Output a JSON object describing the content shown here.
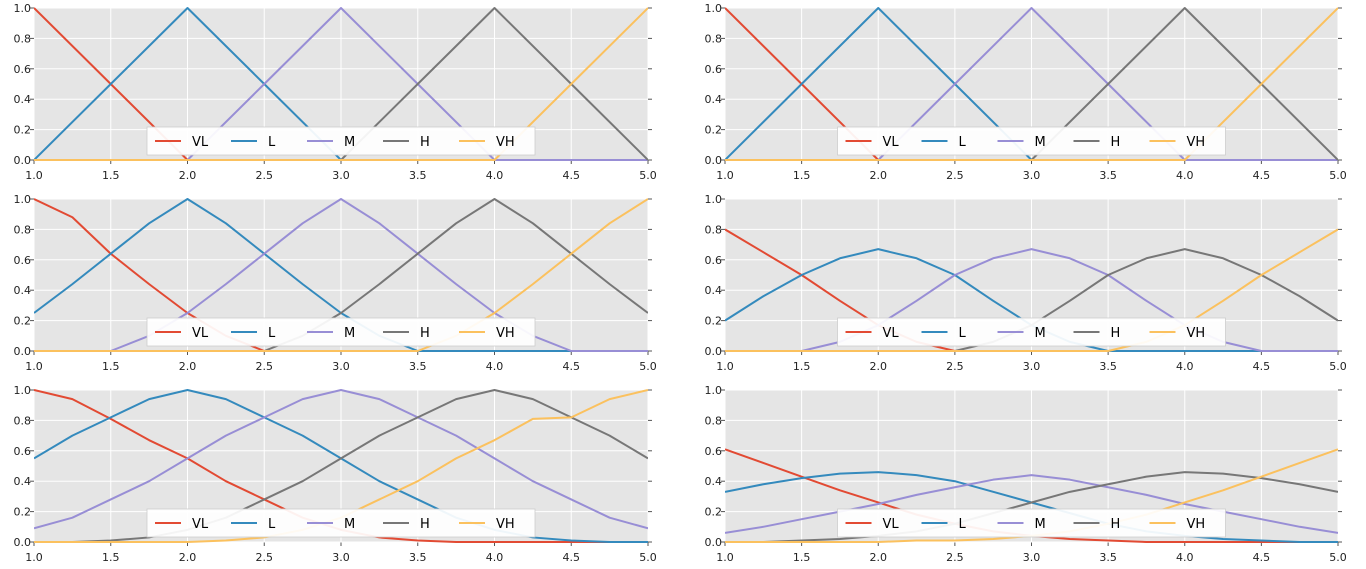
{
  "legend": {
    "labels": [
      "VL",
      "L",
      "M",
      "H",
      "VH"
    ],
    "colors": [
      "#E24A33",
      "#348ABD",
      "#988ED5",
      "#777777",
      "#FBC15E"
    ],
    "placement": "lower-center"
  },
  "style": {
    "plot_background": "#E5E5E5",
    "grid_color": "#FFFFFF",
    "grid": true
  },
  "chart_data": [
    {
      "type": "line",
      "x": [
        1.0,
        1.5,
        2.0,
        2.5,
        3.0,
        3.5,
        4.0,
        4.5,
        5.0
      ],
      "x_tick_labels": [
        "1.0",
        "1.5",
        "2.0",
        "2.5",
        "3.0",
        "3.5",
        "4.0",
        "4.5",
        "5.0"
      ],
      "y_tick_labels": [
        "0.0",
        "0.2",
        "0.4",
        "0.6",
        "0.8",
        "1.0"
      ],
      "xlim": [
        1.0,
        5.0
      ],
      "ylim": [
        0.0,
        1.0
      ],
      "series": [
        {
          "name": "VL",
          "values": [
            1.0,
            0.5,
            0.0,
            0.0,
            0.0,
            0.0,
            0.0,
            0.0,
            0.0
          ]
        },
        {
          "name": "L",
          "values": [
            0.0,
            0.5,
            1.0,
            0.5,
            0.0,
            0.0,
            0.0,
            0.0,
            0.0
          ]
        },
        {
          "name": "M",
          "values": [
            0.0,
            0.0,
            0.0,
            0.5,
            1.0,
            0.5,
            0.0,
            0.0,
            0.0
          ]
        },
        {
          "name": "H",
          "values": [
            0.0,
            0.0,
            0.0,
            0.0,
            0.0,
            0.5,
            1.0,
            0.5,
            0.0
          ]
        },
        {
          "name": "VH",
          "values": [
            0.0,
            0.0,
            0.0,
            0.0,
            0.0,
            0.0,
            0.0,
            0.5,
            1.0
          ]
        }
      ]
    },
    {
      "type": "line",
      "x": [
        1.0,
        1.5,
        2.0,
        2.5,
        3.0,
        3.5,
        4.0,
        4.5,
        5.0
      ],
      "x_tick_labels": [
        "1.0",
        "1.5",
        "2.0",
        "2.5",
        "3.0",
        "3.5",
        "4.0",
        "4.5",
        "5.0"
      ],
      "y_tick_labels": [
        "0.0",
        "0.2",
        "0.4",
        "0.6",
        "0.8",
        "1.0"
      ],
      "xlim": [
        1.0,
        5.0
      ],
      "ylim": [
        0.0,
        1.0
      ],
      "series": [
        {
          "name": "VL",
          "values": [
            1.0,
            0.5,
            0.0,
            0.0,
            0.0,
            0.0,
            0.0,
            0.0,
            0.0
          ]
        },
        {
          "name": "L",
          "values": [
            0.0,
            0.5,
            1.0,
            0.5,
            0.0,
            0.0,
            0.0,
            0.0,
            0.0
          ]
        },
        {
          "name": "M",
          "values": [
            0.0,
            0.0,
            0.0,
            0.5,
            1.0,
            0.5,
            0.0,
            0.0,
            0.0
          ]
        },
        {
          "name": "H",
          "values": [
            0.0,
            0.0,
            0.0,
            0.0,
            0.0,
            0.5,
            1.0,
            0.5,
            0.0
          ]
        },
        {
          "name": "VH",
          "values": [
            0.0,
            0.0,
            0.0,
            0.0,
            0.0,
            0.0,
            0.0,
            0.5,
            1.0
          ]
        }
      ]
    },
    {
      "type": "line",
      "x": [
        1.0,
        1.25,
        1.5,
        1.75,
        2.0,
        2.25,
        2.5,
        2.75,
        3.0,
        3.25,
        3.5,
        3.75,
        4.0,
        4.25,
        4.5,
        4.75,
        5.0
      ],
      "x_tick_labels": [
        "1.0",
        "1.5",
        "2.0",
        "2.5",
        "3.0",
        "3.5",
        "4.0",
        "4.5",
        "5.0"
      ],
      "y_tick_labels": [
        "0.0",
        "0.2",
        "0.4",
        "0.6",
        "0.8",
        "1.0"
      ],
      "xlim": [
        1.0,
        5.0
      ],
      "ylim": [
        0.0,
        1.0
      ],
      "series": [
        {
          "name": "VL",
          "values": [
            1.0,
            0.88,
            0.64,
            0.44,
            0.25,
            0.1,
            0.0,
            0.0,
            0.0,
            0.0,
            0.0,
            0.0,
            0.0,
            0.0,
            0.0,
            0.0,
            0.0
          ]
        },
        {
          "name": "L",
          "values": [
            0.25,
            0.44,
            0.64,
            0.84,
            1.0,
            0.84,
            0.64,
            0.44,
            0.25,
            0.1,
            0.0,
            0.0,
            0.0,
            0.0,
            0.0,
            0.0,
            0.0
          ]
        },
        {
          "name": "M",
          "values": [
            0.0,
            0.0,
            0.0,
            0.1,
            0.25,
            0.44,
            0.64,
            0.84,
            1.0,
            0.84,
            0.64,
            0.44,
            0.25,
            0.1,
            0.0,
            0.0,
            0.0
          ]
        },
        {
          "name": "H",
          "values": [
            0.0,
            0.0,
            0.0,
            0.0,
            0.0,
            0.0,
            0.0,
            0.1,
            0.25,
            0.44,
            0.64,
            0.84,
            1.0,
            0.84,
            0.64,
            0.44,
            0.25
          ]
        },
        {
          "name": "VH",
          "values": [
            0.0,
            0.0,
            0.0,
            0.0,
            0.0,
            0.0,
            0.0,
            0.0,
            0.0,
            0.0,
            0.0,
            0.1,
            0.25,
            0.44,
            0.64,
            0.84,
            1.0
          ]
        }
      ]
    },
    {
      "type": "line",
      "x": [
        1.0,
        1.25,
        1.5,
        1.75,
        2.0,
        2.25,
        2.5,
        2.75,
        3.0,
        3.25,
        3.5,
        3.75,
        4.0,
        4.25,
        4.5,
        4.75,
        5.0
      ],
      "x_tick_labels": [
        "1.0",
        "1.5",
        "2.0",
        "2.5",
        "3.0",
        "3.5",
        "4.0",
        "4.5",
        "5.0"
      ],
      "y_tick_labels": [
        "0.0",
        "0.2",
        "0.4",
        "0.6",
        "0.8",
        "1.0"
      ],
      "xlim": [
        1.0,
        5.0
      ],
      "ylim": [
        0.0,
        1.0
      ],
      "series": [
        {
          "name": "VL",
          "values": [
            0.8,
            0.65,
            0.5,
            0.33,
            0.17,
            0.06,
            0.0,
            0.0,
            0.0,
            0.0,
            0.0,
            0.0,
            0.0,
            0.0,
            0.0,
            0.0,
            0.0
          ]
        },
        {
          "name": "L",
          "values": [
            0.2,
            0.36,
            0.5,
            0.61,
            0.67,
            0.61,
            0.5,
            0.33,
            0.17,
            0.06,
            0.0,
            0.0,
            0.0,
            0.0,
            0.0,
            0.0,
            0.0
          ]
        },
        {
          "name": "M",
          "values": [
            0.0,
            0.0,
            0.0,
            0.06,
            0.17,
            0.33,
            0.5,
            0.61,
            0.67,
            0.61,
            0.5,
            0.33,
            0.17,
            0.06,
            0.0,
            0.0,
            0.0
          ]
        },
        {
          "name": "H",
          "values": [
            0.0,
            0.0,
            0.0,
            0.0,
            0.0,
            0.0,
            0.0,
            0.06,
            0.17,
            0.33,
            0.5,
            0.61,
            0.67,
            0.61,
            0.5,
            0.36,
            0.2
          ]
        },
        {
          "name": "VH",
          "values": [
            0.0,
            0.0,
            0.0,
            0.0,
            0.0,
            0.0,
            0.0,
            0.0,
            0.0,
            0.0,
            0.0,
            0.06,
            0.17,
            0.33,
            0.5,
            0.65,
            0.8
          ]
        }
      ]
    },
    {
      "type": "line",
      "x": [
        1.0,
        1.25,
        1.5,
        1.75,
        2.0,
        2.25,
        2.5,
        2.75,
        3.0,
        3.25,
        3.5,
        3.75,
        4.0,
        4.25,
        4.5,
        4.75,
        5.0
      ],
      "x_tick_labels": [
        "1.0",
        "1.5",
        "2.0",
        "2.5",
        "3.0",
        "3.5",
        "4.0",
        "4.5",
        "5.0"
      ],
      "y_tick_labels": [
        "0.0",
        "0.2",
        "0.4",
        "0.6",
        "0.8",
        "1.0"
      ],
      "xlim": [
        1.0,
        5.0
      ],
      "ylim": [
        0.0,
        1.0
      ],
      "series": [
        {
          "name": "VL",
          "values": [
            1.0,
            0.94,
            0.81,
            0.67,
            0.55,
            0.4,
            0.28,
            0.16,
            0.08,
            0.03,
            0.01,
            0.0,
            0.0,
            0.0,
            0.0,
            0.0,
            0.0
          ]
        },
        {
          "name": "L",
          "values": [
            0.55,
            0.7,
            0.82,
            0.94,
            1.0,
            0.94,
            0.82,
            0.7,
            0.55,
            0.4,
            0.28,
            0.16,
            0.08,
            0.03,
            0.01,
            0.0,
            0.0
          ]
        },
        {
          "name": "M",
          "values": [
            0.09,
            0.16,
            0.28,
            0.4,
            0.55,
            0.7,
            0.82,
            0.94,
            1.0,
            0.94,
            0.82,
            0.7,
            0.55,
            0.4,
            0.28,
            0.16,
            0.09
          ]
        },
        {
          "name": "H",
          "values": [
            0.0,
            0.0,
            0.01,
            0.03,
            0.08,
            0.16,
            0.28,
            0.4,
            0.55,
            0.7,
            0.82,
            0.94,
            1.0,
            0.94,
            0.82,
            0.7,
            0.55
          ]
        },
        {
          "name": "VH",
          "values": [
            0.0,
            0.0,
            0.0,
            0.0,
            0.0,
            0.01,
            0.03,
            0.08,
            0.16,
            0.28,
            0.4,
            0.55,
            0.67,
            0.81,
            0.82,
            0.94,
            1.0
          ]
        }
      ]
    },
    {
      "type": "line",
      "x": [
        1.0,
        1.25,
        1.5,
        1.75,
        2.0,
        2.25,
        2.5,
        2.75,
        3.0,
        3.25,
        3.5,
        3.75,
        4.0,
        4.25,
        4.5,
        4.75,
        5.0
      ],
      "x_tick_labels": [
        "1.0",
        "1.5",
        "2.0",
        "2.5",
        "3.0",
        "3.5",
        "4.0",
        "4.5",
        "5.0"
      ],
      "y_tick_labels": [
        "0.0",
        "0.2",
        "0.4",
        "0.6",
        "0.8",
        "1.0"
      ],
      "xlim": [
        1.0,
        5.0
      ],
      "ylim": [
        0.0,
        1.0
      ],
      "series": [
        {
          "name": "VL",
          "values": [
            0.61,
            0.52,
            0.43,
            0.34,
            0.26,
            0.18,
            0.12,
            0.07,
            0.04,
            0.02,
            0.01,
            0.0,
            0.0,
            0.0,
            0.0,
            0.0,
            0.0
          ]
        },
        {
          "name": "L",
          "values": [
            0.33,
            0.38,
            0.42,
            0.45,
            0.46,
            0.44,
            0.4,
            0.33,
            0.26,
            0.19,
            0.12,
            0.07,
            0.04,
            0.02,
            0.01,
            0.0,
            0.0
          ]
        },
        {
          "name": "M",
          "values": [
            0.06,
            0.1,
            0.15,
            0.2,
            0.25,
            0.31,
            0.36,
            0.41,
            0.44,
            0.41,
            0.36,
            0.31,
            0.25,
            0.2,
            0.15,
            0.1,
            0.06
          ]
        },
        {
          "name": "H",
          "values": [
            0.0,
            0.0,
            0.01,
            0.02,
            0.04,
            0.07,
            0.12,
            0.19,
            0.26,
            0.33,
            0.38,
            0.43,
            0.46,
            0.45,
            0.42,
            0.38,
            0.33
          ]
        },
        {
          "name": "VH",
          "values": [
            0.0,
            0.0,
            0.0,
            0.0,
            0.0,
            0.01,
            0.01,
            0.02,
            0.04,
            0.07,
            0.12,
            0.18,
            0.26,
            0.34,
            0.43,
            0.52,
            0.61
          ]
        }
      ]
    }
  ]
}
